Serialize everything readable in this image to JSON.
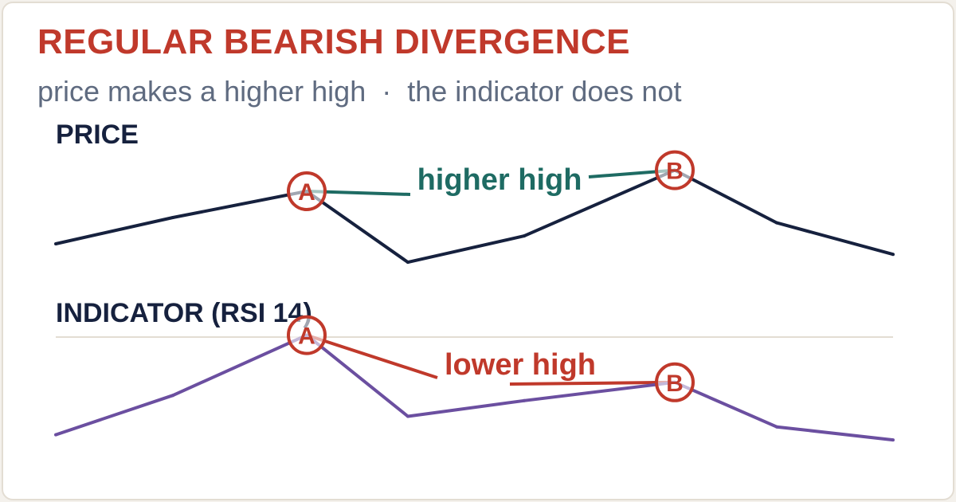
{
  "title": "REGULAR BEARISH DIVERGENCE",
  "subtitle": "price makes a higher high  ·  the indicator does not",
  "colors": {
    "title": "#c0392b",
    "subtitle": "#5f6b80",
    "price_line": "#16213e",
    "indicator_line": "#6b4fa0",
    "higher_high": "#1e6b63",
    "lower_high": "#c0392b",
    "marker": "#c0392b",
    "divider": "#e3ddd3"
  },
  "chart_data": [
    {
      "type": "line",
      "panel_label": "PRICE",
      "series": [
        {
          "values": [
            10,
            20,
            30,
            3,
            13,
            38,
            18,
            6
          ]
        }
      ],
      "points": [
        {
          "index": 2,
          "label": "A"
        },
        {
          "index": 5,
          "label": "B"
        }
      ],
      "annotation": "higher high",
      "ylim": [
        0,
        40
      ]
    },
    {
      "type": "line",
      "panel_label": "INDICATOR  (RSI 14)",
      "series": [
        {
          "values": [
            40,
            55,
            78,
            47,
            53,
            60,
            43,
            38
          ]
        }
      ],
      "points": [
        {
          "index": 2,
          "label": "A"
        },
        {
          "index": 5,
          "label": "B"
        }
      ],
      "annotation": "lower high",
      "ylim": [
        35,
        80
      ]
    }
  ]
}
